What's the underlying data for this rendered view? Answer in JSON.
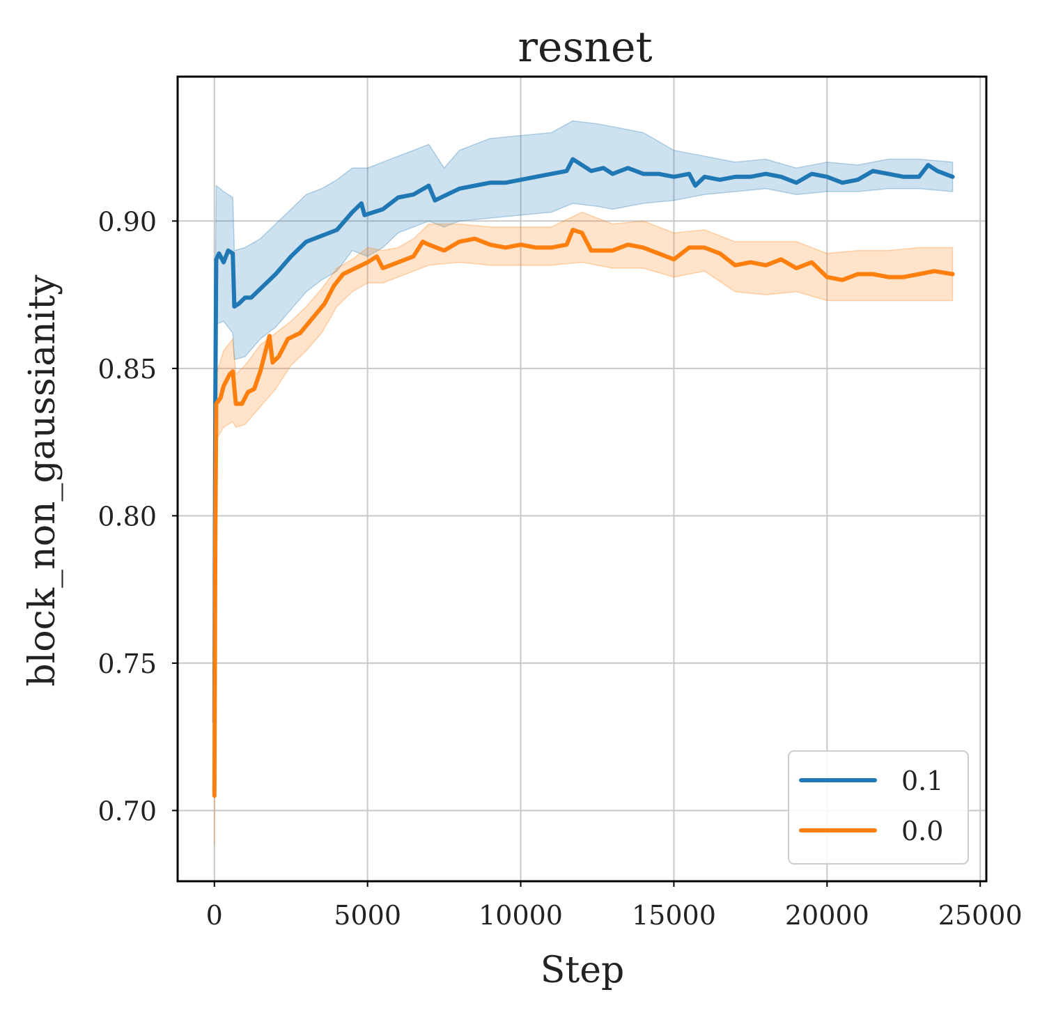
{
  "chart_data": {
    "type": "line",
    "title": "resnet",
    "xlabel": "Step",
    "ylabel": "block_non_gaussianity",
    "xlim": [
      -1200,
      25200
    ],
    "ylim": [
      0.676,
      0.949
    ],
    "xticks": [
      0,
      5000,
      10000,
      15000,
      20000,
      25000
    ],
    "xtick_labels": [
      "0",
      "5000",
      "10000",
      "15000",
      "20000",
      "25000"
    ],
    "yticks": [
      0.7,
      0.75,
      0.8,
      0.85,
      0.9
    ],
    "ytick_labels": [
      "0.70",
      "0.75",
      "0.80",
      "0.85",
      "0.90"
    ],
    "grid": true,
    "legend": {
      "placement": "lower-right"
    },
    "series": [
      {
        "name": "0.1",
        "color": "#1f77b4",
        "band": true,
        "points": [
          [
            0,
            0.73
          ],
          [
            30,
            0.838
          ],
          [
            60,
            0.887
          ],
          [
            150,
            0.889
          ],
          [
            300,
            0.886
          ],
          [
            450,
            0.89
          ],
          [
            600,
            0.889
          ],
          [
            650,
            0.871
          ],
          [
            800,
            0.872
          ],
          [
            1000,
            0.874
          ],
          [
            1200,
            0.874
          ],
          [
            1500,
            0.877
          ],
          [
            2000,
            0.882
          ],
          [
            2500,
            0.888
          ],
          [
            3000,
            0.893
          ],
          [
            3500,
            0.895
          ],
          [
            4000,
            0.897
          ],
          [
            4500,
            0.903
          ],
          [
            4800,
            0.906
          ],
          [
            4900,
            0.902
          ],
          [
            5500,
            0.904
          ],
          [
            6000,
            0.908
          ],
          [
            6500,
            0.909
          ],
          [
            7000,
            0.912
          ],
          [
            7200,
            0.907
          ],
          [
            7600,
            0.909
          ],
          [
            8000,
            0.911
          ],
          [
            8500,
            0.912
          ],
          [
            9000,
            0.913
          ],
          [
            9500,
            0.913
          ],
          [
            10000,
            0.914
          ],
          [
            10500,
            0.915
          ],
          [
            11000,
            0.916
          ],
          [
            11500,
            0.917
          ],
          [
            11700,
            0.921
          ],
          [
            12000,
            0.919
          ],
          [
            12300,
            0.917
          ],
          [
            12700,
            0.918
          ],
          [
            13000,
            0.916
          ],
          [
            13500,
            0.918
          ],
          [
            14000,
            0.916
          ],
          [
            14500,
            0.916
          ],
          [
            15000,
            0.915
          ],
          [
            15500,
            0.916
          ],
          [
            15700,
            0.912
          ],
          [
            16000,
            0.915
          ],
          [
            16500,
            0.914
          ],
          [
            17000,
            0.915
          ],
          [
            17500,
            0.915
          ],
          [
            18000,
            0.916
          ],
          [
            18500,
            0.915
          ],
          [
            19000,
            0.913
          ],
          [
            19500,
            0.916
          ],
          [
            20000,
            0.915
          ],
          [
            20500,
            0.913
          ],
          [
            21000,
            0.914
          ],
          [
            21500,
            0.917
          ],
          [
            22000,
            0.916
          ],
          [
            22500,
            0.915
          ],
          [
            23000,
            0.915
          ],
          [
            23300,
            0.919
          ],
          [
            23600,
            0.917
          ],
          [
            24100,
            0.915
          ]
        ],
        "lower": [
          [
            0,
            0.715
          ],
          [
            30,
            0.83
          ],
          [
            60,
            0.865
          ],
          [
            300,
            0.866
          ],
          [
            600,
            0.862
          ],
          [
            650,
            0.853
          ],
          [
            1000,
            0.854
          ],
          [
            1500,
            0.86
          ],
          [
            2000,
            0.864
          ],
          [
            2500,
            0.87
          ],
          [
            3000,
            0.876
          ],
          [
            3500,
            0.88
          ],
          [
            4000,
            0.883
          ],
          [
            4500,
            0.89
          ],
          [
            5000,
            0.888
          ],
          [
            5500,
            0.891
          ],
          [
            6000,
            0.896
          ],
          [
            6500,
            0.898
          ],
          [
            7000,
            0.9
          ],
          [
            7500,
            0.898
          ],
          [
            8000,
            0.9
          ],
          [
            9000,
            0.901
          ],
          [
            10000,
            0.902
          ],
          [
            11000,
            0.903
          ],
          [
            11700,
            0.906
          ],
          [
            12500,
            0.905
          ],
          [
            13000,
            0.904
          ],
          [
            14000,
            0.906
          ],
          [
            15000,
            0.907
          ],
          [
            16000,
            0.909
          ],
          [
            17000,
            0.91
          ],
          [
            18000,
            0.911
          ],
          [
            19000,
            0.909
          ],
          [
            20000,
            0.91
          ],
          [
            21000,
            0.91
          ],
          [
            22000,
            0.911
          ],
          [
            23000,
            0.911
          ],
          [
            24100,
            0.91
          ]
        ],
        "upper": [
          [
            0,
            0.745
          ],
          [
            30,
            0.88
          ],
          [
            60,
            0.912
          ],
          [
            300,
            0.91
          ],
          [
            600,
            0.908
          ],
          [
            650,
            0.89
          ],
          [
            1000,
            0.891
          ],
          [
            1500,
            0.894
          ],
          [
            2000,
            0.899
          ],
          [
            2500,
            0.904
          ],
          [
            3000,
            0.909
          ],
          [
            3500,
            0.911
          ],
          [
            4000,
            0.914
          ],
          [
            4500,
            0.918
          ],
          [
            5000,
            0.918
          ],
          [
            5500,
            0.92
          ],
          [
            6000,
            0.922
          ],
          [
            6500,
            0.924
          ],
          [
            7000,
            0.926
          ],
          [
            7500,
            0.918
          ],
          [
            8000,
            0.924
          ],
          [
            9000,
            0.928
          ],
          [
            10000,
            0.929
          ],
          [
            11000,
            0.93
          ],
          [
            11700,
            0.934
          ],
          [
            12500,
            0.933
          ],
          [
            13000,
            0.932
          ],
          [
            14000,
            0.93
          ],
          [
            15000,
            0.924
          ],
          [
            16000,
            0.922
          ],
          [
            17000,
            0.92
          ],
          [
            18000,
            0.921
          ],
          [
            19000,
            0.918
          ],
          [
            20000,
            0.92
          ],
          [
            21000,
            0.919
          ],
          [
            22000,
            0.921
          ],
          [
            23000,
            0.921
          ],
          [
            24100,
            0.92
          ]
        ]
      },
      {
        "name": "0.0",
        "color": "#ff7f0e",
        "band": true,
        "points": [
          [
            0,
            0.705
          ],
          [
            30,
            0.79
          ],
          [
            60,
            0.838
          ],
          [
            200,
            0.84
          ],
          [
            300,
            0.844
          ],
          [
            500,
            0.848
          ],
          [
            600,
            0.849
          ],
          [
            700,
            0.838
          ],
          [
            900,
            0.838
          ],
          [
            1100,
            0.842
          ],
          [
            1300,
            0.843
          ],
          [
            1500,
            0.849
          ],
          [
            1700,
            0.857
          ],
          [
            1800,
            0.861
          ],
          [
            1900,
            0.852
          ],
          [
            2100,
            0.854
          ],
          [
            2400,
            0.86
          ],
          [
            2800,
            0.862
          ],
          [
            3200,
            0.867
          ],
          [
            3600,
            0.872
          ],
          [
            3900,
            0.878
          ],
          [
            4200,
            0.882
          ],
          [
            4600,
            0.884
          ],
          [
            5000,
            0.886
          ],
          [
            5300,
            0.888
          ],
          [
            5500,
            0.884
          ],
          [
            6000,
            0.886
          ],
          [
            6500,
            0.888
          ],
          [
            6800,
            0.893
          ],
          [
            7000,
            0.892
          ],
          [
            7500,
            0.89
          ],
          [
            8000,
            0.893
          ],
          [
            8500,
            0.894
          ],
          [
            9000,
            0.892
          ],
          [
            9500,
            0.891
          ],
          [
            10000,
            0.892
          ],
          [
            10500,
            0.891
          ],
          [
            11000,
            0.891
          ],
          [
            11500,
            0.892
          ],
          [
            11700,
            0.897
          ],
          [
            12000,
            0.896
          ],
          [
            12300,
            0.89
          ],
          [
            13000,
            0.89
          ],
          [
            13500,
            0.892
          ],
          [
            14000,
            0.891
          ],
          [
            14500,
            0.889
          ],
          [
            15000,
            0.887
          ],
          [
            15500,
            0.891
          ],
          [
            16000,
            0.891
          ],
          [
            16500,
            0.889
          ],
          [
            17000,
            0.885
          ],
          [
            17500,
            0.886
          ],
          [
            18000,
            0.885
          ],
          [
            18500,
            0.887
          ],
          [
            19000,
            0.884
          ],
          [
            19500,
            0.886
          ],
          [
            20000,
            0.881
          ],
          [
            20500,
            0.88
          ],
          [
            21000,
            0.882
          ],
          [
            21500,
            0.882
          ],
          [
            22000,
            0.881
          ],
          [
            22500,
            0.881
          ],
          [
            23000,
            0.882
          ],
          [
            23500,
            0.883
          ],
          [
            24100,
            0.882
          ]
        ],
        "lower": [
          [
            0,
            0.688
          ],
          [
            30,
            0.77
          ],
          [
            60,
            0.826
          ],
          [
            300,
            0.83
          ],
          [
            600,
            0.832
          ],
          [
            700,
            0.83
          ],
          [
            1000,
            0.831
          ],
          [
            1500,
            0.837
          ],
          [
            2000,
            0.843
          ],
          [
            2500,
            0.851
          ],
          [
            3000,
            0.856
          ],
          [
            3500,
            0.862
          ],
          [
            4000,
            0.871
          ],
          [
            4500,
            0.876
          ],
          [
            5000,
            0.879
          ],
          [
            5500,
            0.879
          ],
          [
            6000,
            0.881
          ],
          [
            6500,
            0.883
          ],
          [
            7000,
            0.885
          ],
          [
            8000,
            0.886
          ],
          [
            9000,
            0.885
          ],
          [
            10000,
            0.885
          ],
          [
            11000,
            0.885
          ],
          [
            12000,
            0.886
          ],
          [
            13000,
            0.884
          ],
          [
            14000,
            0.884
          ],
          [
            15000,
            0.881
          ],
          [
            16000,
            0.883
          ],
          [
            17000,
            0.876
          ],
          [
            18000,
            0.875
          ],
          [
            19000,
            0.876
          ],
          [
            20000,
            0.873
          ],
          [
            21000,
            0.873
          ],
          [
            22000,
            0.873
          ],
          [
            23000,
            0.873
          ],
          [
            24100,
            0.873
          ]
        ],
        "upper": [
          [
            0,
            0.72
          ],
          [
            30,
            0.81
          ],
          [
            60,
            0.848
          ],
          [
            300,
            0.856
          ],
          [
            600,
            0.86
          ],
          [
            700,
            0.848
          ],
          [
            1000,
            0.851
          ],
          [
            1500,
            0.858
          ],
          [
            2000,
            0.862
          ],
          [
            2500,
            0.866
          ],
          [
            3000,
            0.871
          ],
          [
            3500,
            0.877
          ],
          [
            4000,
            0.884
          ],
          [
            4500,
            0.887
          ],
          [
            5000,
            0.891
          ],
          [
            5500,
            0.89
          ],
          [
            6000,
            0.891
          ],
          [
            6500,
            0.894
          ],
          [
            7000,
            0.899
          ],
          [
            8000,
            0.899
          ],
          [
            9000,
            0.898
          ],
          [
            10000,
            0.898
          ],
          [
            11000,
            0.898
          ],
          [
            12000,
            0.903
          ],
          [
            13000,
            0.899
          ],
          [
            14000,
            0.9
          ],
          [
            15000,
            0.896
          ],
          [
            16000,
            0.897
          ],
          [
            17000,
            0.893
          ],
          [
            18000,
            0.893
          ],
          [
            19000,
            0.893
          ],
          [
            20000,
            0.889
          ],
          [
            21000,
            0.89
          ],
          [
            22000,
            0.89
          ],
          [
            23000,
            0.891
          ],
          [
            24100,
            0.891
          ]
        ]
      }
    ]
  }
}
